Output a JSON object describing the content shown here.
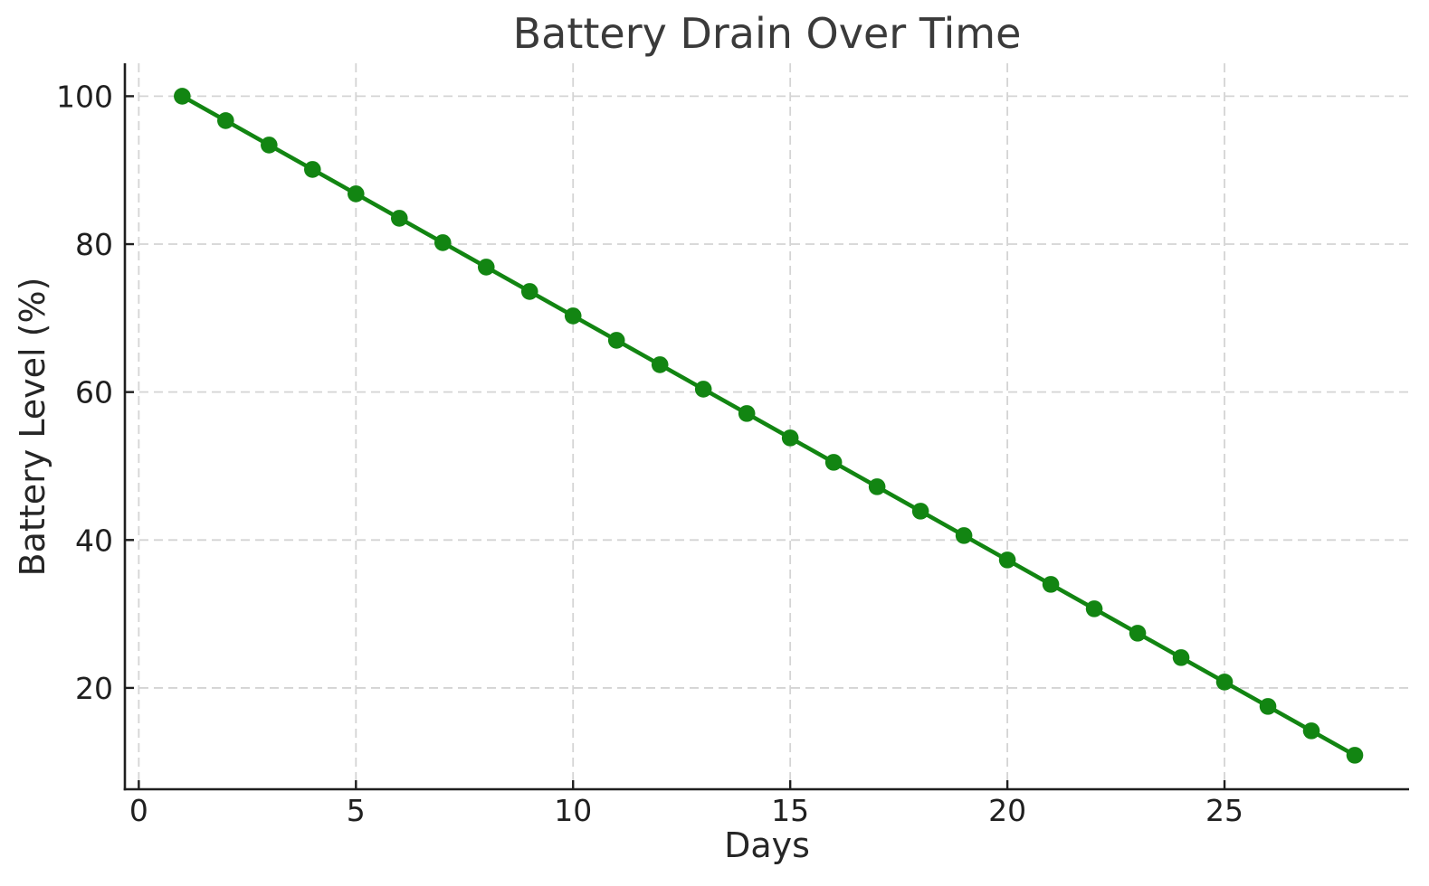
{
  "figure": {
    "background_color": "#ffffff"
  },
  "chart_data": {
    "type": "line",
    "title": "Battery Drain Over Time",
    "xlabel": "Days",
    "ylabel": "Battery Level (%)",
    "x": [
      1,
      2,
      3,
      4,
      5,
      6,
      7,
      8,
      9,
      10,
      11,
      12,
      13,
      14,
      15,
      16,
      17,
      18,
      19,
      20,
      21,
      22,
      23,
      24,
      25,
      26,
      27,
      28
    ],
    "values": [
      100.0,
      96.7,
      93.4,
      90.1,
      86.8,
      83.5,
      80.2,
      76.9,
      73.6,
      70.3,
      67.0,
      63.7,
      60.4,
      57.1,
      53.8,
      50.5,
      47.2,
      43.9,
      40.6,
      37.3,
      34.0,
      30.7,
      27.4,
      24.1,
      20.8,
      17.5,
      14.2,
      10.9
    ],
    "xticks": [
      0,
      5,
      10,
      15,
      20,
      25
    ],
    "yticks": [
      20,
      40,
      60,
      80,
      100
    ],
    "xlim": [
      -0.32,
      29.25
    ],
    "ylim": [
      6.3,
      104.45
    ],
    "grid": true,
    "grid_style": "dashed",
    "legend": "none",
    "marker": "circle",
    "colors": {
      "line": "#128512",
      "marker": "#128512",
      "grid": "#d4d4d4",
      "spine": "#1f1f1f",
      "tick_text": "#1f1f1f",
      "title_text": "#3a3a3a",
      "label_text": "#262626"
    }
  }
}
